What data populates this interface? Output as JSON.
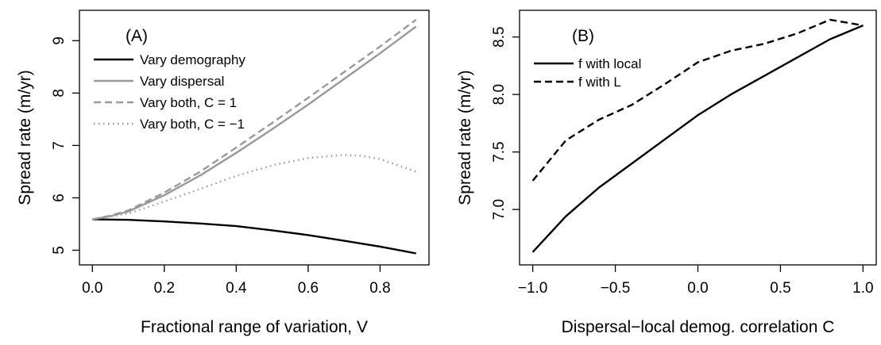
{
  "chart_data": [
    {
      "type": "line",
      "panel_label": "(A)",
      "xlabel": "Fractional range of variation, V",
      "ylabel": "Spread rate (m/yr)",
      "xlim": [
        0.0,
        0.9
      ],
      "ylim": [
        4.9,
        9.4
      ],
      "xticks": [
        0.0,
        0.2,
        0.4,
        0.6,
        0.8
      ],
      "xtick_labels": [
        "0.0",
        "0.2",
        "0.4",
        "0.6",
        "0.8"
      ],
      "yticks": [
        5,
        6,
        7,
        8,
        9
      ],
      "ytick_labels": [
        "5",
        "6",
        "7",
        "8",
        "9"
      ],
      "legend_position": "top-left",
      "series": [
        {
          "name": "Vary demography",
          "color": "#000000",
          "dash": "solid",
          "x": [
            0.0,
            0.1,
            0.2,
            0.3,
            0.4,
            0.5,
            0.6,
            0.7,
            0.8,
            0.9
          ],
          "y": [
            5.59,
            5.58,
            5.55,
            5.51,
            5.46,
            5.38,
            5.29,
            5.18,
            5.07,
            4.94
          ]
        },
        {
          "name": "Vary dispersal",
          "color": "#999999",
          "dash": "solid",
          "x": [
            0.0,
            0.05,
            0.1,
            0.2,
            0.3,
            0.4,
            0.5,
            0.6,
            0.7,
            0.8,
            0.9
          ],
          "y": [
            5.59,
            5.65,
            5.74,
            6.05,
            6.43,
            6.86,
            7.31,
            7.78,
            8.27,
            8.76,
            9.27
          ]
        },
        {
          "name": "Vary both, C = 1",
          "color": "#999999",
          "dash": "dashed",
          "x": [
            0.0,
            0.05,
            0.1,
            0.2,
            0.3,
            0.4,
            0.5,
            0.6,
            0.7,
            0.8,
            0.9
          ],
          "y": [
            5.59,
            5.66,
            5.76,
            6.1,
            6.5,
            6.96,
            7.43,
            7.91,
            8.4,
            8.89,
            9.4
          ]
        },
        {
          "name": "Vary both, C = −1",
          "color": "#999999",
          "dash": "dotted",
          "x": [
            0.0,
            0.1,
            0.2,
            0.3,
            0.4,
            0.5,
            0.6,
            0.7,
            0.75,
            0.8,
            0.9
          ],
          "y": [
            5.59,
            5.7,
            5.93,
            6.17,
            6.42,
            6.62,
            6.76,
            6.82,
            6.8,
            6.74,
            6.5
          ]
        }
      ]
    },
    {
      "type": "line",
      "panel_label": "(B)",
      "xlabel": "Dispersal−local demog. correlation C",
      "ylabel": "Spread rate (m/yr)",
      "xlim": [
        -1.0,
        1.0
      ],
      "ylim": [
        6.6,
        8.65
      ],
      "xticks": [
        -1.0,
        -0.5,
        0.0,
        0.5,
        1.0
      ],
      "xtick_labels": [
        "−1.0",
        "−0.5",
        "0.0",
        "0.5",
        "1.0"
      ],
      "yticks": [
        7.0,
        7.5,
        8.0,
        8.5
      ],
      "ytick_labels": [
        "7.0",
        "7.5",
        "8.0",
        "8.5"
      ],
      "legend_position": "top-left",
      "series": [
        {
          "name": "f with local",
          "color": "#000000",
          "dash": "solid",
          "x": [
            -1.0,
            -0.8,
            -0.6,
            -0.4,
            -0.2,
            0.0,
            0.2,
            0.4,
            0.6,
            0.8,
            1.0
          ],
          "y": [
            6.63,
            6.94,
            7.19,
            7.4,
            7.61,
            7.82,
            8.0,
            8.16,
            8.32,
            8.48,
            8.6
          ]
        },
        {
          "name": "f with L",
          "color": "#000000",
          "dash": "dashed",
          "x": [
            -1.0,
            -0.8,
            -0.6,
            -0.4,
            -0.2,
            0.0,
            0.2,
            0.4,
            0.6,
            0.8,
            1.0
          ],
          "y": [
            7.25,
            7.6,
            7.78,
            7.91,
            8.09,
            8.28,
            8.38,
            8.44,
            8.53,
            8.65,
            8.6
          ]
        }
      ]
    }
  ]
}
